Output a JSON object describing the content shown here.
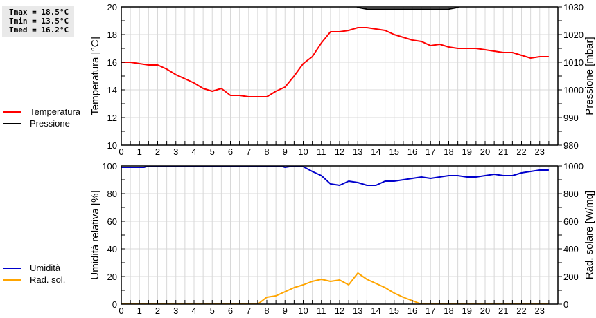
{
  "stats": {
    "tmax": "Tmax = 18.5°C",
    "tmin": "Tmin = 13.5°C",
    "tmed": "Tmed = 16.2°C"
  },
  "legend_top": [
    {
      "label": "Temperatura",
      "color": "#ff0000"
    },
    {
      "label": "Pressione",
      "color": "#000000"
    }
  ],
  "legend_bottom": [
    {
      "label": "Umidità",
      "color": "#0000cc"
    },
    {
      "label": "Rad. sol.",
      "color": "#ffa500"
    }
  ],
  "chart_data": [
    {
      "type": "line",
      "title": "",
      "xlabel": "",
      "ylabel": "Temperatura [°C]",
      "ylabel_right": "Pressione [mbar]",
      "xlim": [
        0,
        24
      ],
      "ylim": [
        10,
        20
      ],
      "ylim_right": [
        980,
        1030
      ],
      "x_ticks": [
        0,
        1,
        2,
        3,
        4,
        5,
        6,
        7,
        8,
        9,
        10,
        11,
        12,
        13,
        14,
        15,
        16,
        17,
        18,
        19,
        20,
        21,
        22,
        23
      ],
      "y_ticks": [
        10,
        12,
        14,
        16,
        18,
        20
      ],
      "y_ticks_right": [
        980,
        990,
        1000,
        1010,
        1020,
        1030
      ],
      "grid": true,
      "legend_position": "left",
      "series": [
        {
          "name": "Temperatura",
          "axis": "left",
          "color": "#ff0000",
          "x": [
            0,
            0.5,
            1,
            1.5,
            2,
            2.5,
            3,
            3.5,
            4,
            4.5,
            5,
            5.5,
            6,
            6.5,
            7,
            7.5,
            8,
            8.5,
            9,
            9.5,
            10,
            10.5,
            11,
            11.5,
            12,
            12.5,
            13,
            13.5,
            14,
            14.5,
            15,
            15.5,
            16,
            16.5,
            17,
            17.5,
            18,
            18.5,
            19,
            19.5,
            20,
            20.5,
            21,
            21.5,
            22,
            22.5,
            23,
            23.5
          ],
          "values": [
            16.0,
            16.0,
            15.9,
            15.8,
            15.8,
            15.5,
            15.1,
            14.8,
            14.5,
            14.1,
            13.9,
            14.1,
            13.6,
            13.6,
            13.5,
            13.5,
            13.5,
            13.9,
            14.2,
            15.0,
            15.9,
            16.4,
            17.4,
            18.2,
            18.2,
            18.3,
            18.5,
            18.5,
            18.4,
            18.3,
            18.0,
            17.8,
            17.6,
            17.5,
            17.2,
            17.3,
            17.1,
            17.0,
            17.0,
            17.0,
            16.9,
            16.8,
            16.7,
            16.7,
            16.5,
            16.3,
            16.4,
            16.4
          ]
        },
        {
          "name": "Pressione",
          "axis": "right",
          "color": "#000000",
          "x": [
            12.9,
            13.1,
            13.5,
            14,
            15,
            16,
            17,
            18,
            18.4,
            18.6
          ],
          "values": [
            1030.2,
            1029.7,
            1029.2,
            1029.2,
            1029.2,
            1029.2,
            1029.2,
            1029.2,
            1029.7,
            1030.2
          ]
        }
      ]
    },
    {
      "type": "line",
      "title": "",
      "xlabel": "",
      "ylabel": "Umidità relativa [%]",
      "ylabel_right": "Rad. solare [W/mq]",
      "xlim": [
        0,
        24
      ],
      "ylim": [
        0,
        100
      ],
      "ylim_right": [
        0,
        1000
      ],
      "x_ticks": [
        0,
        1,
        2,
        3,
        4,
        5,
        6,
        7,
        8,
        9,
        10,
        11,
        12,
        13,
        14,
        15,
        16,
        17,
        18,
        19,
        20,
        21,
        22,
        23
      ],
      "y_ticks": [
        0,
        20,
        40,
        60,
        80,
        100
      ],
      "y_ticks_right": [
        0,
        200,
        400,
        600,
        800,
        1000
      ],
      "grid": true,
      "legend_position": "left",
      "series": [
        {
          "name": "Umidità",
          "axis": "left",
          "color": "#0000cc",
          "x": [
            0,
            1.25,
            1.5,
            8.75,
            9,
            9.25,
            9.5,
            9.75,
            10,
            10.5,
            11,
            11.5,
            12,
            12.5,
            13,
            13.5,
            14,
            14.5,
            15,
            15.5,
            16,
            16.5,
            17,
            17.5,
            18,
            18.5,
            19,
            19.5,
            20,
            20.5,
            21,
            21.5,
            22,
            22.5,
            23,
            23.5
          ],
          "values": [
            99,
            99,
            100,
            100,
            99,
            99.5,
            100,
            100,
            99.5,
            96,
            93,
            87,
            86,
            89,
            88,
            86,
            86,
            89,
            89,
            90,
            91,
            92,
            91,
            92,
            93,
            93,
            92,
            92,
            93,
            94,
            93,
            93,
            95,
            96,
            97,
            97
          ]
        },
        {
          "name": "Rad. sol.",
          "axis": "right",
          "color": "#ffa500",
          "x": [
            0,
            7.5,
            8,
            8.5,
            9,
            9.5,
            10,
            10.5,
            11,
            11.5,
            12,
            12.5,
            13,
            13.5,
            14,
            14.5,
            15,
            15.5,
            16,
            16.5,
            23.5
          ],
          "values": [
            0,
            0,
            50,
            60,
            90,
            120,
            140,
            165,
            180,
            165,
            175,
            140,
            225,
            180,
            150,
            120,
            80,
            50,
            25,
            0,
            0
          ]
        }
      ]
    }
  ]
}
